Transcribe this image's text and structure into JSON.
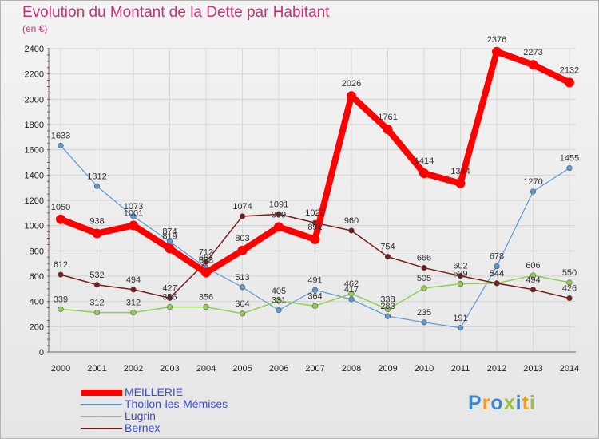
{
  "title": "Evolution du Montant de la Dette par Habitant",
  "unit": "(en €)",
  "logo": {
    "text": "Proxiti",
    "colors": [
      "#3d87c6",
      "#f29a1c",
      "#3d87c6",
      "#9bc23c",
      "#3d87c6",
      "#f29a1c",
      "#9bc23c"
    ]
  },
  "chart_data": {
    "type": "line",
    "title": "Evolution du Montant de la Dette par Habitant",
    "ylabel": "(en €)",
    "xlabel": "",
    "x": [
      "2000",
      "2001",
      "2002",
      "2003",
      "2004",
      "2005",
      "2006",
      "2007",
      "2008",
      "2009",
      "2010",
      "2011",
      "2012",
      "2013",
      "2014"
    ],
    "ylim": [
      0,
      2400
    ],
    "yticks": [
      0,
      200,
      400,
      600,
      800,
      1000,
      1200,
      1400,
      1600,
      1800,
      2000,
      2200,
      2400
    ],
    "grid": true,
    "legend": "bottom-left",
    "series": [
      {
        "name": "MEILLERIE",
        "color": "#ff0000",
        "values": [
          1050,
          938,
          1001,
          819,
          628,
          803,
          989,
          891,
          2026,
          1761,
          1414,
          1334,
          2376,
          2273,
          2132
        ]
      },
      {
        "name": "Thollon-les-Mémises",
        "color": "#5b9bd5",
        "values": [
          1633,
          1312,
          1073,
          874,
          667,
          513,
          331,
          491,
          417,
          283,
          235,
          191,
          678,
          1270,
          1455
        ]
      },
      {
        "name": "Lugrin",
        "color": "#92d050",
        "values": [
          339,
          312,
          312,
          356,
          356,
          304,
          405,
          364,
          462,
          338,
          505,
          539,
          544,
          606,
          550
        ]
      },
      {
        "name": "Bernex",
        "color": "#7b1c1c",
        "values": [
          612,
          532,
          494,
          427,
          712,
          1074,
          1091,
          1022,
          960,
          754,
          666,
          602,
          544,
          494,
          426
        ]
      }
    ]
  }
}
